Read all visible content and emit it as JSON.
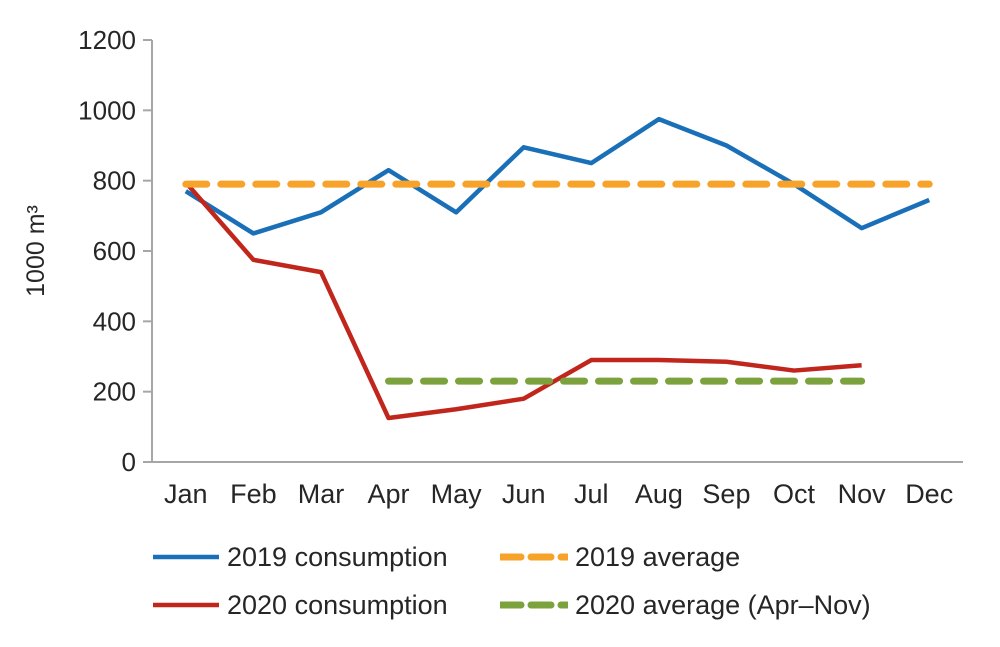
{
  "chart_data": {
    "type": "line",
    "title": "",
    "categories": [
      "Jan",
      "Feb",
      "Mar",
      "Apr",
      "May",
      "Jun",
      "Jul",
      "Aug",
      "Sep",
      "Oct",
      "Nov",
      "Dec"
    ],
    "ylabel": "1000 m³",
    "xlabel": "",
    "ylim": [
      0,
      1200
    ],
    "yticks": [
      0,
      200,
      400,
      600,
      800,
      1000,
      1200
    ],
    "grid": false,
    "legend_position": "bottom",
    "axis_color": "#a6a6a6",
    "text_color": "#262626",
    "series": [
      {
        "name": "2019 consumption",
        "line_style": "solid",
        "color": "#1a70b8",
        "values": [
          770,
          650,
          710,
          830,
          710,
          895,
          850,
          975,
          900,
          790,
          665,
          745
        ]
      },
      {
        "name": "2020 consumption",
        "line_style": "solid",
        "color": "#c1261d",
        "values": [
          795,
          575,
          540,
          125,
          150,
          180,
          290,
          290,
          285,
          260,
          275,
          null
        ]
      },
      {
        "name": "2019 average",
        "line_style": "dashed",
        "color": "#f7a228",
        "values": [
          790,
          790,
          790,
          790,
          790,
          790,
          790,
          790,
          790,
          790,
          790,
          790
        ]
      },
      {
        "name": "2020 average (Apr–Nov)",
        "line_style": "dashed",
        "color": "#7ba23d",
        "values": [
          null,
          null,
          null,
          230,
          230,
          230,
          230,
          230,
          230,
          230,
          230,
          null
        ]
      }
    ]
  }
}
